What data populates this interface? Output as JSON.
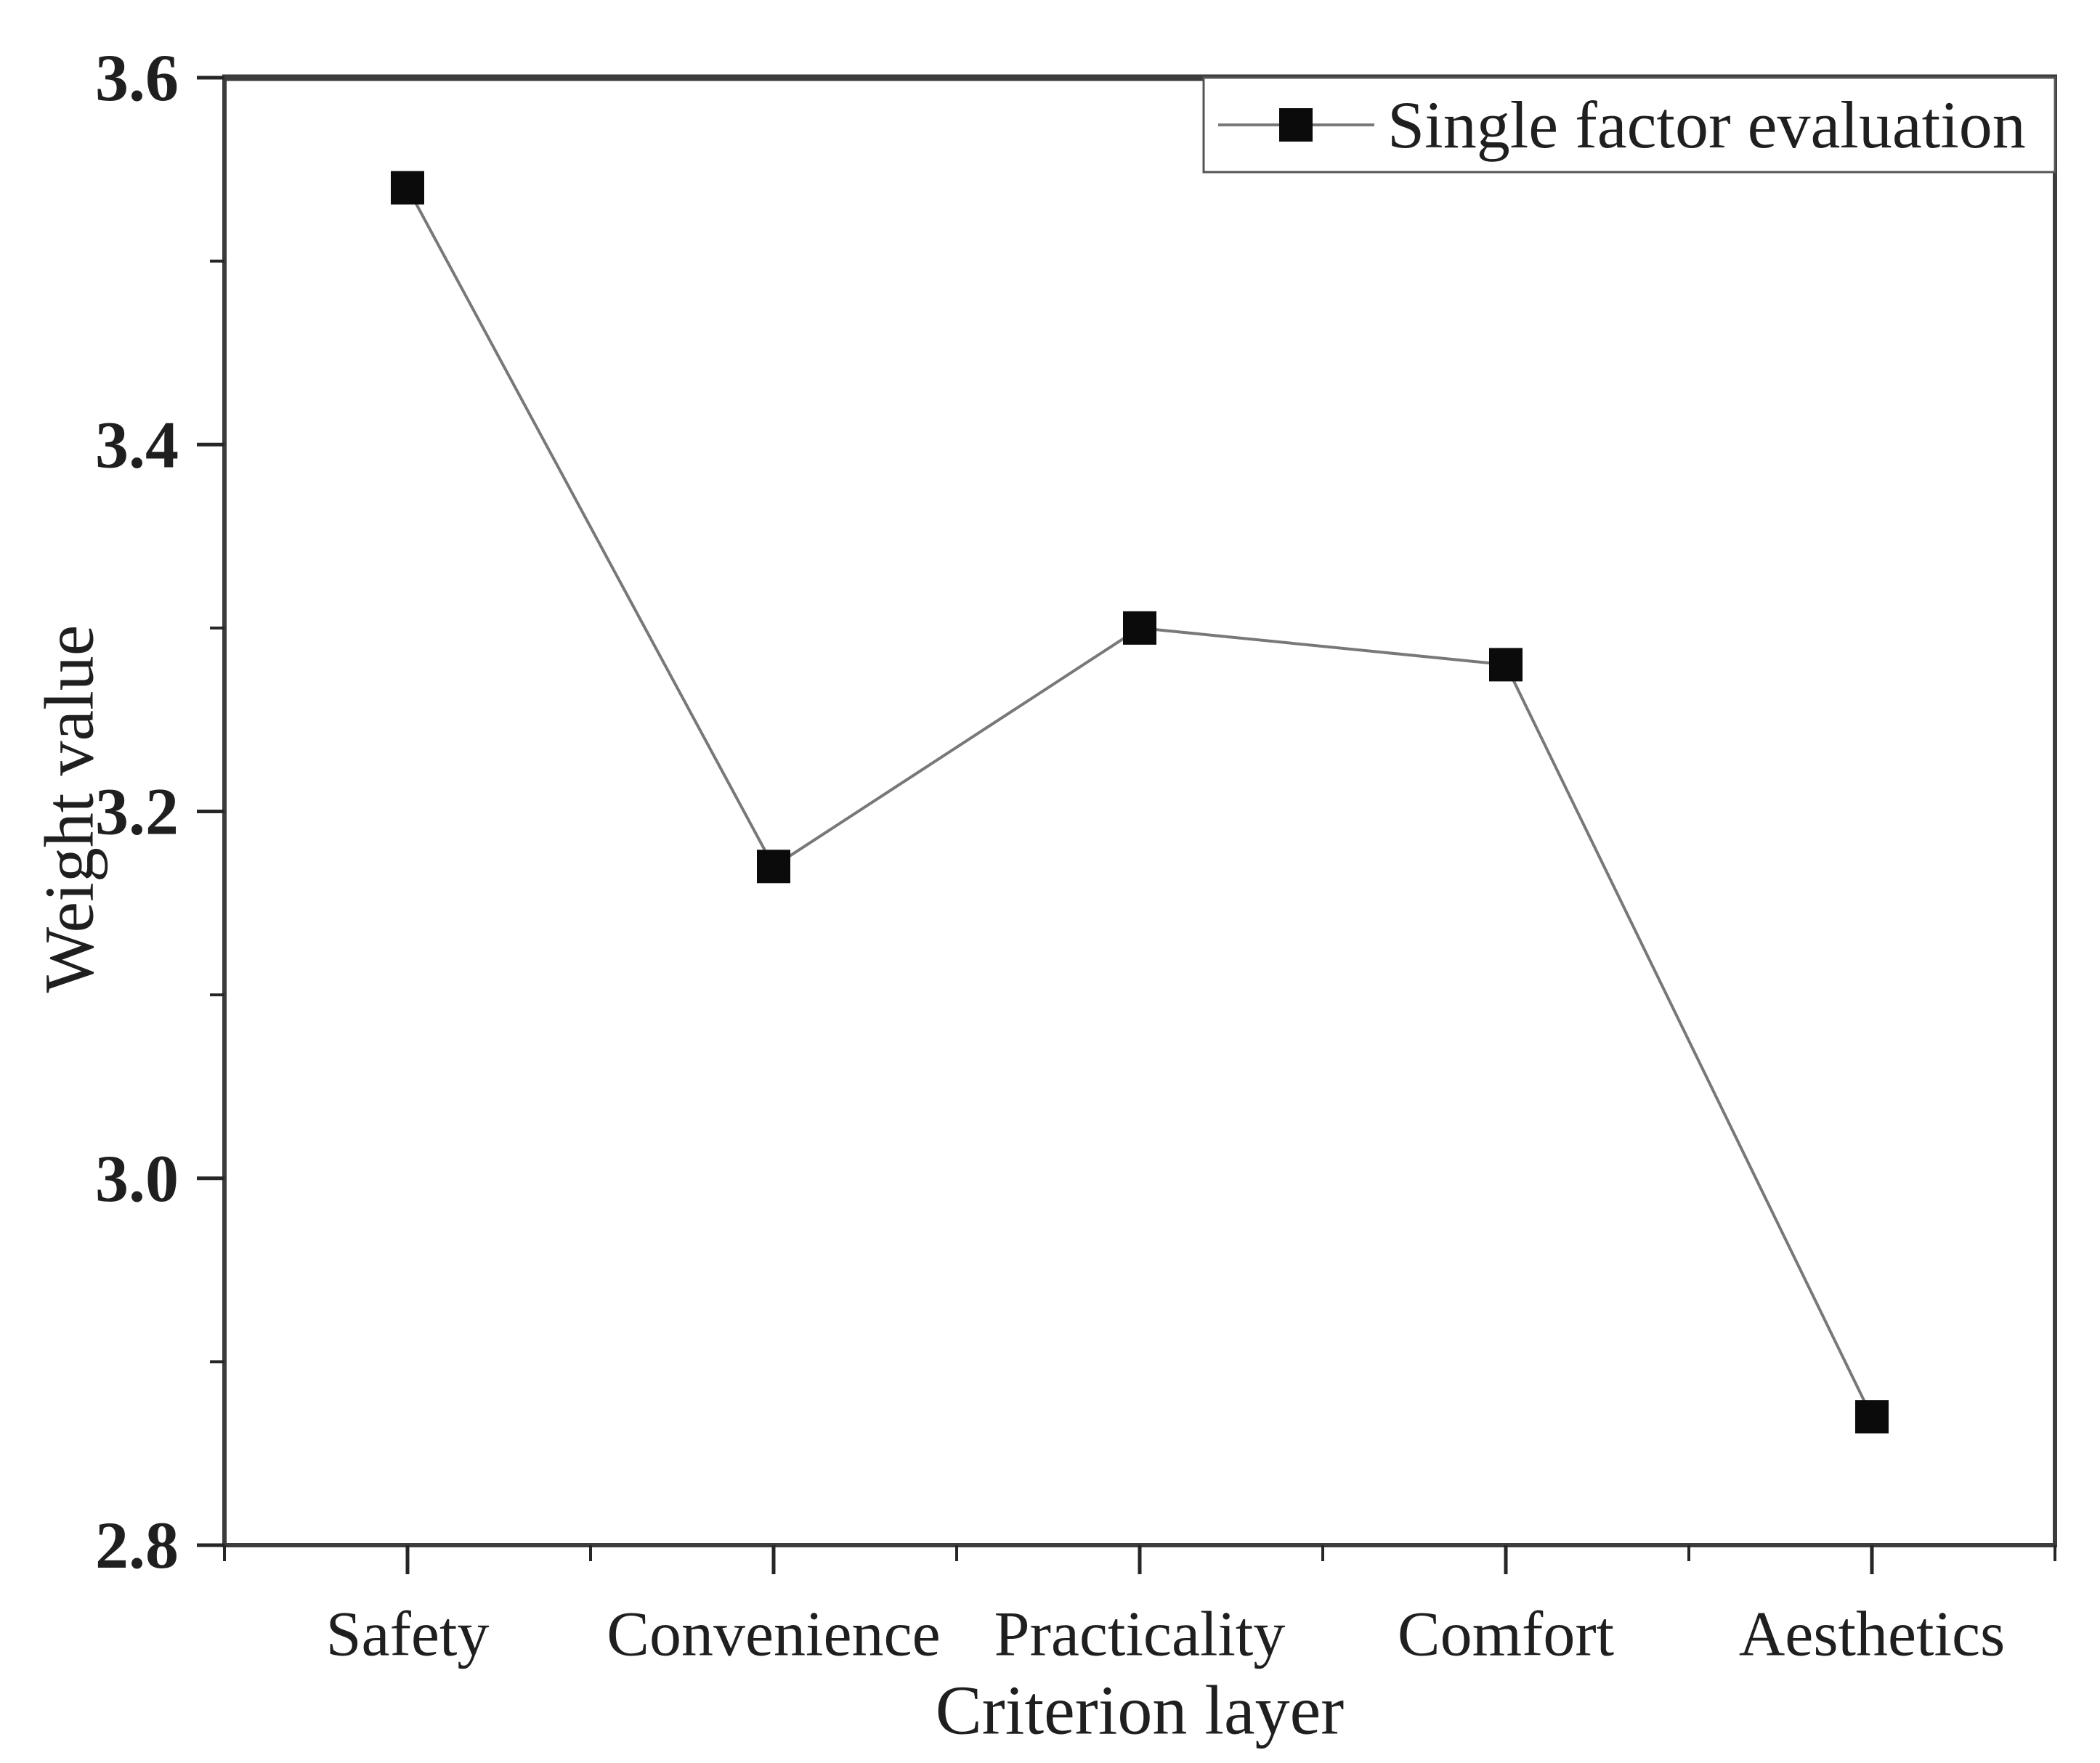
{
  "chart_data": {
    "type": "line",
    "title": "",
    "categories": [
      "Safety",
      "Convenience",
      "Practicality",
      "Comfort",
      "Aesthetics"
    ],
    "series": [
      {
        "name": "Single factor evaluation",
        "marker": "square",
        "values": [
          3.54,
          3.17,
          3.3,
          3.28,
          2.87
        ]
      }
    ],
    "xlabel": "Criterion layer",
    "ylabel": "Weight value",
    "ylim": [
      2.8,
      3.6
    ],
    "yticks_major": [
      2.8,
      3.0,
      3.2,
      3.4,
      3.6
    ],
    "ytick_labels": [
      "2.8",
      "3.0",
      "3.2",
      "3.4",
      "3.6"
    ],
    "yticks_minor": [
      2.9,
      3.1,
      3.3,
      3.5
    ],
    "grid": false,
    "legend": {
      "entries": [
        "Single factor evaluation"
      ],
      "position": "top-right"
    },
    "colors": {
      "line": "#787878",
      "marker": "#0b0b0b",
      "text": "#1f1f1f",
      "frame": "#3c3c3c",
      "tick": "#262626",
      "legend_border": "#555555",
      "background": "#ffffff"
    }
  }
}
